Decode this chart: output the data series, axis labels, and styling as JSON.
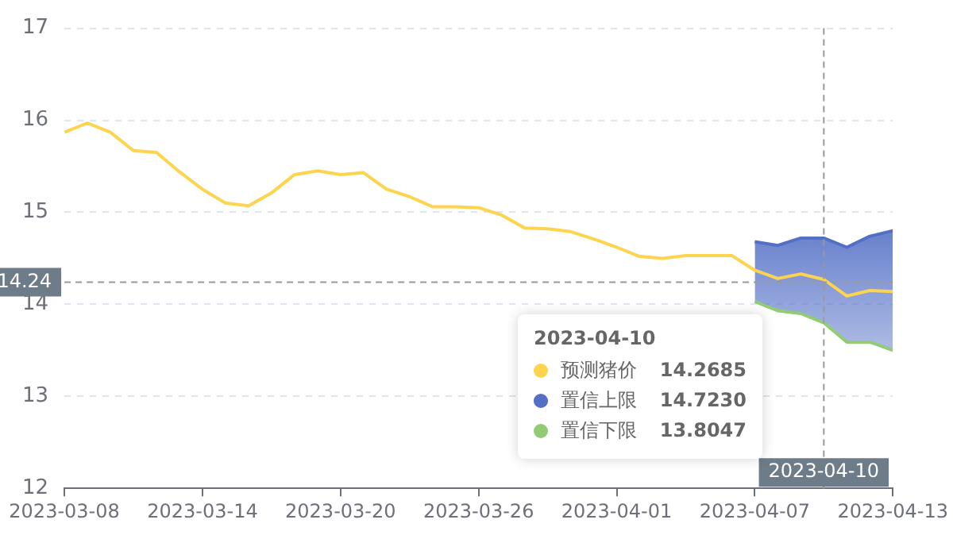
{
  "chart_data": {
    "type": "line",
    "x": [
      "2023-03-08",
      "2023-03-09",
      "2023-03-10",
      "2023-03-11",
      "2023-03-12",
      "2023-03-13",
      "2023-03-14",
      "2023-03-15",
      "2023-03-16",
      "2023-03-17",
      "2023-03-18",
      "2023-03-19",
      "2023-03-20",
      "2023-03-21",
      "2023-03-22",
      "2023-03-23",
      "2023-03-24",
      "2023-03-25",
      "2023-03-26",
      "2023-03-27",
      "2023-03-28",
      "2023-03-29",
      "2023-03-30",
      "2023-03-31",
      "2023-04-01",
      "2023-04-02",
      "2023-04-03",
      "2023-04-04",
      "2023-04-05",
      "2023-04-06",
      "2023-04-07",
      "2023-04-08",
      "2023-04-09",
      "2023-04-10",
      "2023-04-11",
      "2023-04-12",
      "2023-04-13"
    ],
    "series": [
      {
        "name": "预测猪价",
        "color": "#fdd44e",
        "values": [
          15.87,
          15.97,
          15.87,
          15.67,
          15.65,
          15.44,
          15.25,
          15.1,
          15.07,
          15.21,
          15.41,
          15.45,
          15.41,
          15.43,
          15.25,
          15.17,
          15.06,
          15.06,
          15.05,
          14.97,
          14.83,
          14.82,
          14.79,
          14.71,
          14.62,
          14.52,
          14.5,
          14.53,
          14.53,
          14.53,
          14.37,
          14.28,
          14.33,
          14.27,
          14.09,
          14.15,
          14.14
        ],
        "upper": [
          null,
          null,
          null,
          null,
          null,
          null,
          null,
          null,
          null,
          null,
          null,
          null,
          null,
          null,
          null,
          null,
          null,
          null,
          null,
          null,
          null,
          null,
          null,
          null,
          null,
          null,
          null,
          null,
          null,
          null,
          14.68,
          14.64,
          14.72,
          14.72,
          14.62,
          14.74,
          14.8
        ],
        "lower": [
          null,
          null,
          null,
          null,
          null,
          null,
          null,
          null,
          null,
          null,
          null,
          null,
          null,
          null,
          null,
          null,
          null,
          null,
          null,
          null,
          null,
          null,
          null,
          null,
          null,
          null,
          null,
          null,
          null,
          null,
          14.03,
          13.93,
          13.9,
          13.8,
          13.59,
          13.59,
          13.5
        ]
      },
      {
        "name": "置信上限",
        "color": "#5470c6",
        "values": [
          null,
          null,
          null,
          null,
          null,
          null,
          null,
          null,
          null,
          null,
          null,
          null,
          null,
          null,
          null,
          null,
          null,
          null,
          null,
          null,
          null,
          null,
          null,
          null,
          null,
          null,
          null,
          null,
          null,
          null,
          14.68,
          14.64,
          14.72,
          14.72,
          14.62,
          14.74,
          14.8
        ]
      },
      {
        "name": "置信下限",
        "color": "#91cc75",
        "values": [
          null,
          null,
          null,
          null,
          null,
          null,
          null,
          null,
          null,
          null,
          null,
          null,
          null,
          null,
          null,
          null,
          null,
          null,
          null,
          null,
          null,
          null,
          null,
          null,
          null,
          null,
          null,
          null,
          null,
          null,
          14.03,
          13.93,
          13.9,
          13.8,
          13.59,
          13.59,
          13.5
        ]
      }
    ],
    "xlim": [
      "2023-03-08",
      "2023-04-13"
    ],
    "xticks": [
      "2023-03-08",
      "2023-03-14",
      "2023-03-20",
      "2023-03-26",
      "2023-04-01",
      "2023-04-07",
      "2023-04-13"
    ],
    "ylim": [
      12,
      17
    ],
    "yticks": [
      12,
      13,
      14,
      15,
      16,
      17
    ],
    "ref_lines": [
      {
        "axis": "x",
        "value": "2023-04-10",
        "label": "2023-04-10"
      },
      {
        "axis": "y",
        "value": 14.24,
        "label": "14.24"
      }
    ],
    "annotations": [
      "2023-04-10",
      "14.2685",
      "14.7230",
      "13.8047"
    ],
    "grid": "y",
    "legend": "bottom right",
    "marker": "none",
    "line_style": "solid"
  }
}
